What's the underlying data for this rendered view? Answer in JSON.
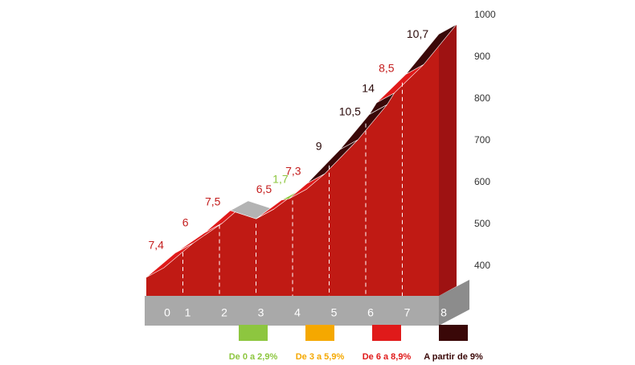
{
  "chart_data": {
    "type": "climb-profile",
    "x": [
      0,
      0.8,
      1.6,
      2.3,
      3.0,
      3.7,
      3.9,
      4.4,
      5.3,
      6.1,
      6.3,
      7.1,
      8.0
    ],
    "values": [
      400,
      459,
      507,
      560,
      540,
      585,
      588,
      625,
      706,
      790,
      818,
      886,
      982
    ],
    "segments": {
      "values": [
        7.4,
        6,
        7.5,
        null,
        6.5,
        1.7,
        7.3,
        9,
        10.5,
        14,
        8.5,
        10.7
      ],
      "value_labels": [
        "7,4",
        "6",
        "7,5",
        null,
        "6,5",
        "1,7",
        "7,3",
        "9",
        "10,5",
        "14",
        "8,5",
        "10,7"
      ],
      "colors": [
        "#e01a1a",
        "#e01a1a",
        "#e01a1a",
        "#b3b3b3",
        "#e01a1a",
        "#8dc63f",
        "#e01a1a",
        "#3a0808",
        "#3a0808",
        "#3a0808",
        "#e01a1a",
        "#3a0808"
      ]
    },
    "xlim": [
      0,
      8
    ],
    "xticks": [
      0,
      1,
      2,
      3,
      4,
      5,
      6,
      7,
      8
    ],
    "ylim": [
      400,
      1000
    ],
    "yticks": [
      400,
      500,
      600,
      700,
      800,
      900,
      1000
    ],
    "legend": [
      {
        "name": "De 0 a 2,9%",
        "color": "#8dc63f"
      },
      {
        "name": "De 3 a 5,9%",
        "color": "#f5a800"
      },
      {
        "name": "De 6 a 8,9%",
        "color": "#e01a1a"
      },
      {
        "name": "A partir de 9%",
        "color": "#3a0808"
      }
    ]
  }
}
